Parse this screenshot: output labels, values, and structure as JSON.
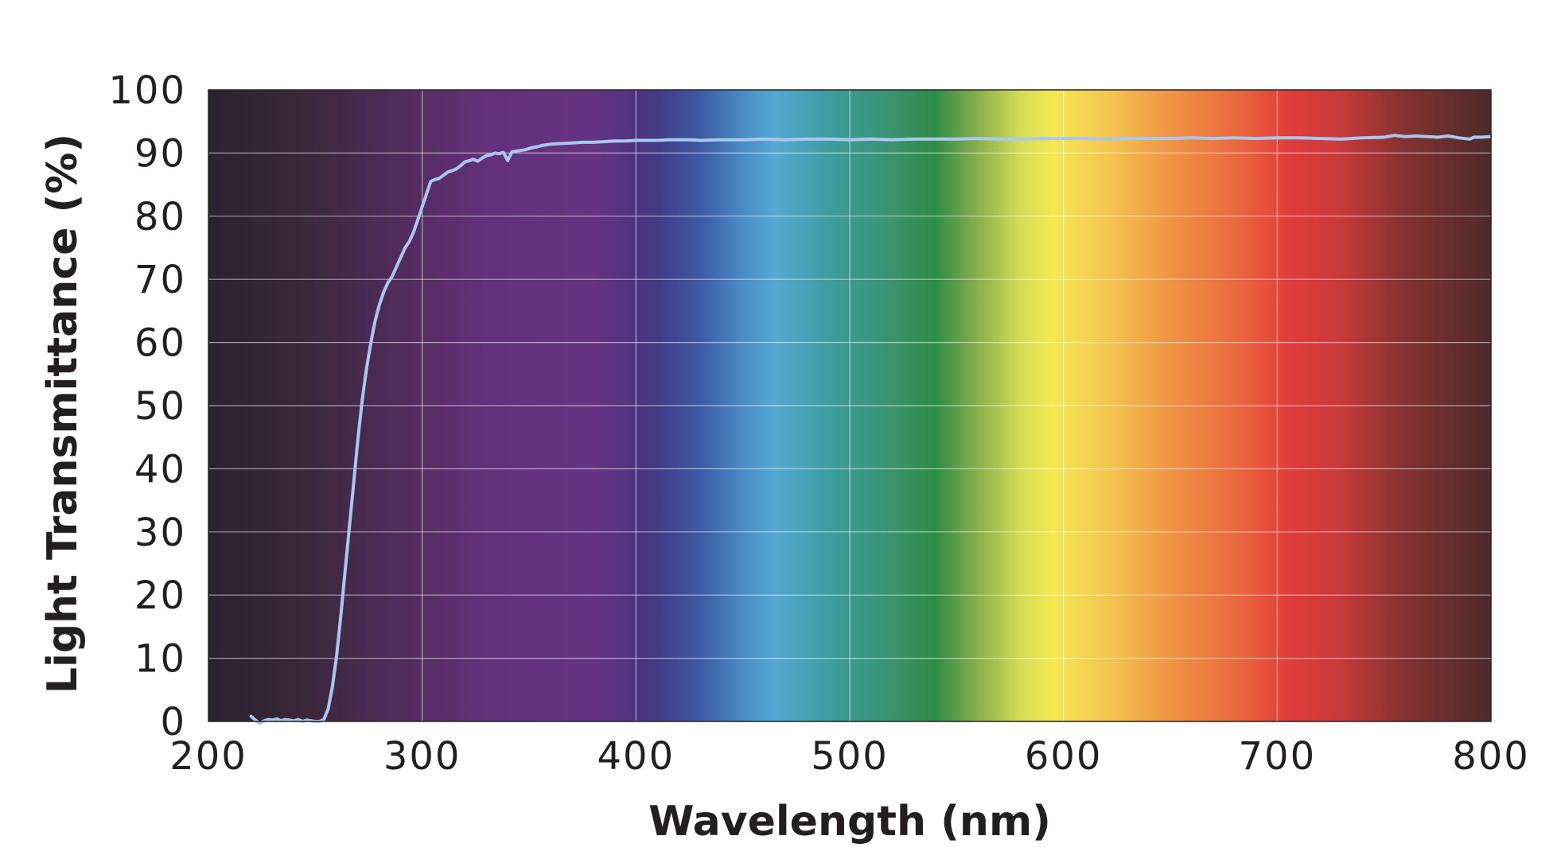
{
  "chart_data": {
    "type": "line",
    "title": "",
    "xlabel": "Wavelength (nm)",
    "ylabel": "Light Transmittance (%)",
    "xlim": [
      200,
      800
    ],
    "ylim": [
      0,
      100
    ],
    "x_ticks": [
      200,
      300,
      400,
      500,
      600,
      700,
      800
    ],
    "y_ticks": [
      0,
      10,
      20,
      30,
      40,
      50,
      60,
      70,
      80,
      90,
      100
    ],
    "x_tick_labels": [
      "200",
      "300",
      "400",
      "500",
      "600",
      "700",
      "800"
    ],
    "y_tick_labels": [
      "0",
      "10",
      "20",
      "30",
      "40",
      "50",
      "60",
      "70",
      "80",
      "90",
      "100"
    ],
    "grid": true,
    "line_color": "#a9c8f0",
    "background": "visible light spectrum gradient",
    "spectrum_stops": [
      {
        "nm": 200,
        "color": "#2b2230"
      },
      {
        "nm": 240,
        "color": "#382737"
      },
      {
        "nm": 290,
        "color": "#512c5c"
      },
      {
        "nm": 330,
        "color": "#64307a"
      },
      {
        "nm": 380,
        "color": "#663383"
      },
      {
        "nm": 400,
        "color": "#4e3380"
      },
      {
        "nm": 410,
        "color": "#433a86"
      },
      {
        "nm": 430,
        "color": "#3d5aa4"
      },
      {
        "nm": 450,
        "color": "#4a8cc4"
      },
      {
        "nm": 465,
        "color": "#55a8d4"
      },
      {
        "nm": 490,
        "color": "#3d9ca0"
      },
      {
        "nm": 520,
        "color": "#3a9270"
      },
      {
        "nm": 540,
        "color": "#2e8c46"
      },
      {
        "nm": 560,
        "color": "#88b04c"
      },
      {
        "nm": 580,
        "color": "#d5dd55"
      },
      {
        "nm": 595,
        "color": "#f3e852"
      },
      {
        "nm": 620,
        "color": "#f4c750"
      },
      {
        "nm": 650,
        "color": "#f09444"
      },
      {
        "nm": 680,
        "color": "#ea6a3e"
      },
      {
        "nm": 705,
        "color": "#e23d3a"
      },
      {
        "nm": 730,
        "color": "#c8393a"
      },
      {
        "nm": 760,
        "color": "#823230"
      },
      {
        "nm": 800,
        "color": "#4e2a2c"
      }
    ],
    "series": [
      {
        "x": [
          220,
          222,
          224,
          226,
          228,
          230,
          232,
          234,
          236,
          238,
          240,
          242,
          244,
          246,
          248,
          250,
          252,
          254,
          256,
          258,
          260,
          262,
          264,
          266,
          268,
          270,
          272,
          274,
          276,
          278,
          280,
          282,
          284,
          286,
          288,
          290,
          292,
          294,
          296,
          298,
          300,
          302,
          304,
          306,
          308,
          310,
          312,
          314,
          316,
          318,
          320,
          322,
          324,
          326,
          328,
          330,
          332,
          334,
          336,
          338,
          340,
          342,
          344,
          346,
          348,
          350,
          352,
          354,
          356,
          358,
          360,
          365,
          370,
          375,
          380,
          385,
          390,
          395,
          400,
          405,
          410,
          415,
          420,
          425,
          430,
          440,
          450,
          460,
          470,
          480,
          490,
          500,
          510,
          520,
          530,
          540,
          550,
          560,
          570,
          580,
          590,
          600,
          610,
          620,
          630,
          640,
          650,
          660,
          670,
          680,
          690,
          700,
          710,
          720,
          730,
          740,
          750,
          755,
          760,
          765,
          770,
          775,
          780,
          785,
          790,
          792,
          795,
          800
        ],
        "values": [
          0.8,
          0.2,
          -0.3,
          0.1,
          0.3,
          0.2,
          0.4,
          0.1,
          0.3,
          0.2,
          0.1,
          0.3,
          0.0,
          0.2,
          0.1,
          0.0,
          0.0,
          0.3,
          2.0,
          5.5,
          10.5,
          17.0,
          24.0,
          31.0,
          38.0,
          45.0,
          51.0,
          56.0,
          60.0,
          63.5,
          66.0,
          68.0,
          69.5,
          70.5,
          72.0,
          73.5,
          75.0,
          76.0,
          77.5,
          79.5,
          81.5,
          83.5,
          85.5,
          85.8,
          86.0,
          86.5,
          87.0,
          87.2,
          87.5,
          88.0,
          88.6,
          88.8,
          89.0,
          88.7,
          89.2,
          89.6,
          89.7,
          90.0,
          89.9,
          90.1,
          88.8,
          90.2,
          90.3,
          90.4,
          90.5,
          90.7,
          90.9,
          91.0,
          91.2,
          91.3,
          91.4,
          91.5,
          91.6,
          91.7,
          91.7,
          91.8,
          91.9,
          91.9,
          92.0,
          92.0,
          92.0,
          92.1,
          92.1,
          92.1,
          92.0,
          92.1,
          92.1,
          92.2,
          92.1,
          92.2,
          92.2,
          92.1,
          92.2,
          92.1,
          92.2,
          92.2,
          92.2,
          92.3,
          92.2,
          92.2,
          92.3,
          92.3,
          92.3,
          92.2,
          92.3,
          92.3,
          92.3,
          92.4,
          92.3,
          92.4,
          92.3,
          92.4,
          92.4,
          92.3,
          92.2,
          92.4,
          92.5,
          92.8,
          92.6,
          92.7,
          92.6,
          92.5,
          92.7,
          92.4,
          92.2,
          92.5,
          92.5,
          92.6
        ]
      }
    ]
  }
}
